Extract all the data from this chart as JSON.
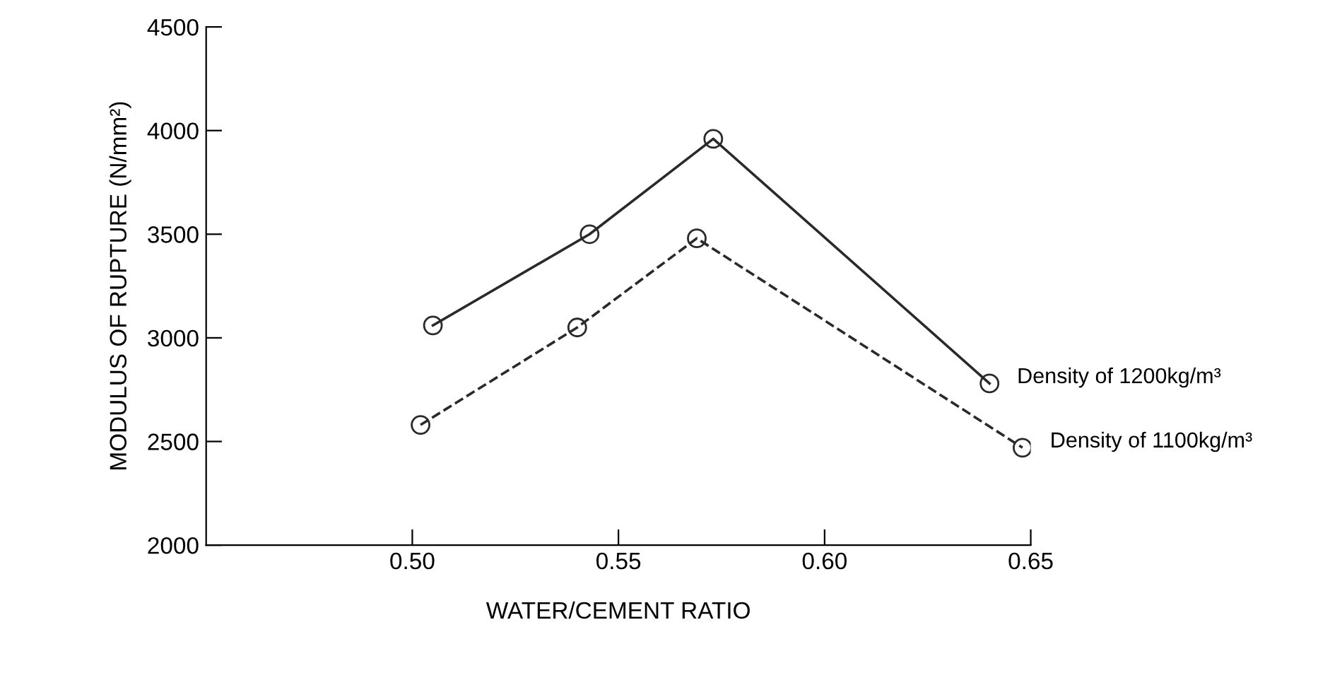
{
  "chart_data": {
    "type": "line",
    "xlabel": "WATER/CEMENT RATIO",
    "ylabel": "MODULUS OF RUPTURE (N/mm²)",
    "xlim": [
      0.45,
      0.65
    ],
    "xticks": [
      {
        "value": 0.5,
        "label": "0.50"
      },
      0.55,
      {
        "value": 0.6,
        "label": "0.60"
      },
      0.65
    ],
    "ylim": [
      2000,
      4500
    ],
    "yticks": [
      2000,
      2500,
      3000,
      3500,
      4000,
      4500
    ],
    "grid": false,
    "legend": false,
    "marker": "circle",
    "series": [
      {
        "name": "Density of 1200kg/m³",
        "color": "#2a2a2a",
        "line_style": "solid",
        "x": [
          0.505,
          0.543,
          0.573,
          0.64
        ],
        "values": [
          3060,
          3500,
          3960,
          2780
        ]
      },
      {
        "name": "Density of 1100kg/m³",
        "color": "#2a2a2a",
        "line_style": "dashed",
        "x": [
          0.502,
          0.54,
          0.569,
          0.648
        ],
        "values": [
          2580,
          3050,
          3480,
          2470
        ]
      }
    ]
  }
}
